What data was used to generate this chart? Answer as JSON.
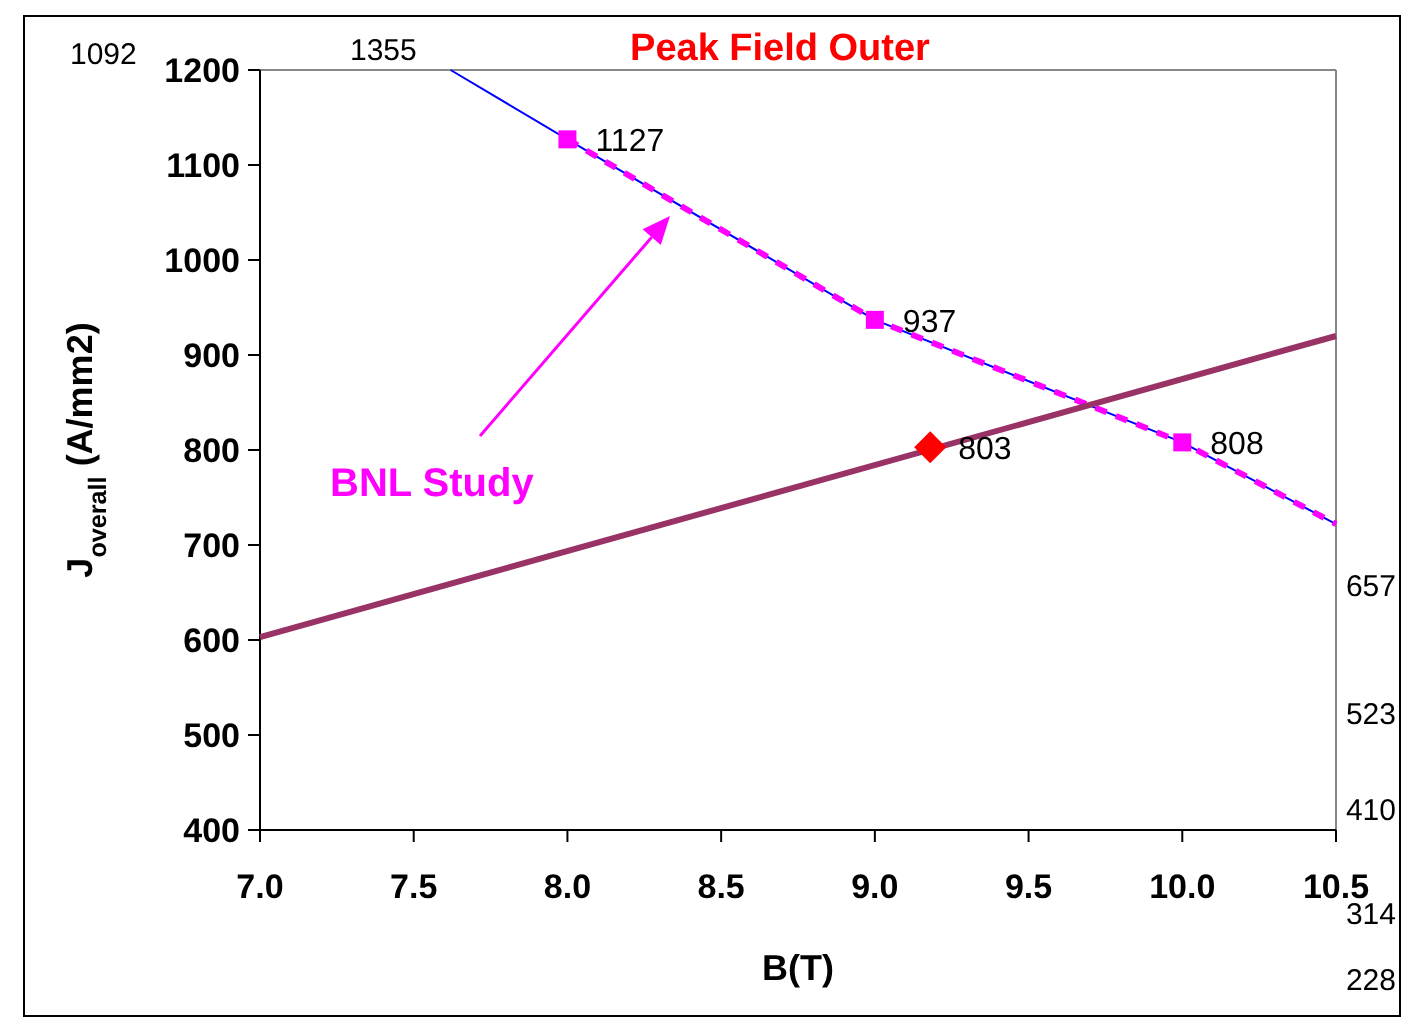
{
  "chart_data": {
    "type": "line",
    "title": "Peak Field Outer",
    "xlabel": "B(T)",
    "ylabel": "J$_{overall}$ (A/mm2)",
    "xlim": [
      7.0,
      10.5
    ],
    "xticks": [
      {
        "value": 7,
        "label": "7.0"
      },
      7.5,
      {
        "value": 8,
        "label": "8.0"
      },
      8.5,
      {
        "value": 9,
        "label": "9.0"
      },
      9.5,
      {
        "value": 10,
        "label": "10.0"
      },
      10.5
    ],
    "ylim": [
      400,
      1200
    ],
    "yticks": [
      400,
      500,
      600,
      700,
      800,
      900,
      1000,
      1100,
      1200
    ],
    "grid": false,
    "series": [
      {
        "color": "#0000ff",
        "x": [
          7.62,
          8,
          9,
          10,
          10.5
        ],
        "values": [
          1200,
          1127,
          937,
          808,
          722
        ],
        "line_style": "solid",
        "marker": "none"
      },
      {
        "color": "#ff00ff",
        "x": [
          8,
          9,
          10,
          10.5
        ],
        "values": [
          1127,
          937,
          808,
          722
        ],
        "line_style": "dashed",
        "marker": "none"
      },
      {
        "type": "scatter",
        "color": "#ff00ff",
        "x": [
          8,
          9,
          10
        ],
        "values": [
          1127,
          937,
          808
        ],
        "marker": "square",
        "value_labels": [
          "1127",
          "937",
          "808"
        ]
      },
      {
        "color": "#993366",
        "x": [
          7,
          10.5
        ],
        "values": [
          603,
          920
        ],
        "line_style": "solid",
        "marker": "none"
      },
      {
        "type": "scatter",
        "color": "#ff0000",
        "x": [
          9.18
        ],
        "values": [
          803
        ],
        "marker": "diamond",
        "value_labels": [
          "803"
        ]
      }
    ],
    "annotations": [
      "BNL Study",
      "1092",
      "1355",
      "657",
      "523",
      "410",
      "314",
      "228"
    ]
  }
}
